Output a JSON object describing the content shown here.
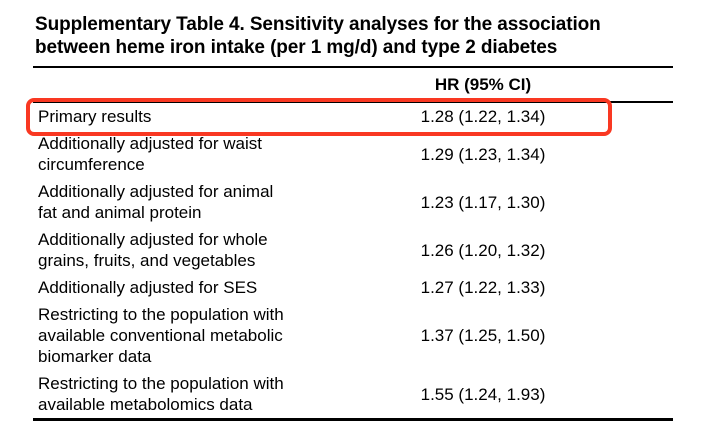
{
  "title_lines": [
    "Supplementary Table 4. Sensitivity analyses for the association",
    "between heme iron intake (per 1 mg/d) and type 2 diabetes"
  ],
  "table": {
    "header": {
      "value_col": "HR (95% CI)"
    },
    "rows": [
      {
        "label_lines": [
          "Primary results"
        ],
        "value": "1.28 (1.22, 1.34)",
        "highlighted": true
      },
      {
        "label_lines": [
          "Additionally adjusted for waist",
          "circumference"
        ],
        "value": "1.29 (1.23, 1.34)",
        "highlighted": false
      },
      {
        "label_lines": [
          "Additionally adjusted for animal",
          "fat and animal protein"
        ],
        "value": "1.23 (1.17, 1.30)",
        "highlighted": false
      },
      {
        "label_lines": [
          "Additionally adjusted for whole",
          "grains, fruits, and vegetables"
        ],
        "value": "1.26 (1.20, 1.32)",
        "highlighted": false
      },
      {
        "label_lines": [
          "Additionally adjusted for SES"
        ],
        "value": "1.27 (1.22, 1.33)",
        "highlighted": false
      },
      {
        "label_lines": [
          "Restricting to the population with",
          "available conventional metabolic",
          "biomarker data"
        ],
        "value": "1.37 (1.25, 1.50)",
        "highlighted": false
      },
      {
        "label_lines": [
          "Restricting to the population with",
          "available metabolomics data"
        ],
        "value": "1.55 (1.24, 1.93)",
        "highlighted": false
      }
    ]
  },
  "annotation": {
    "highlight_color": "#f93822"
  },
  "colors": {
    "text": "#000000",
    "background": "#ffffff",
    "rule": "#000000"
  }
}
